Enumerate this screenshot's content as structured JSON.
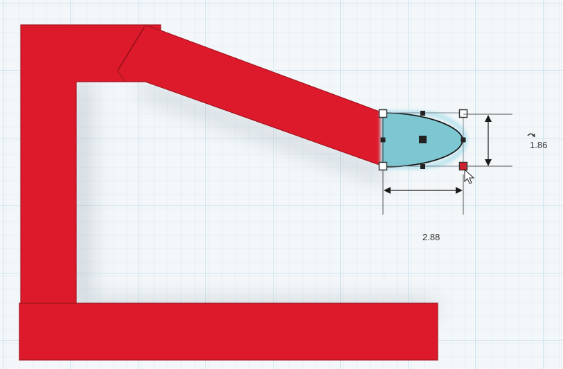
{
  "workplane": {
    "background": "#f4f7f9",
    "grid_minor_color": "#d5e6f0",
    "grid_major_color": "#a9cfe3"
  },
  "shape_colors": {
    "red_part": "#dc1a2b",
    "red_outline": "#a5141f",
    "selected_fill": "#7dc7d3",
    "selected_outline": "#1a1a1a",
    "selection_glow": "#bfe6ef"
  },
  "dimensions": {
    "height_value": "1.86",
    "width_value": "2.88"
  },
  "icons": {
    "rotate": "rotate-arrow-icon",
    "cursor": "mouse-pointer-icon"
  }
}
